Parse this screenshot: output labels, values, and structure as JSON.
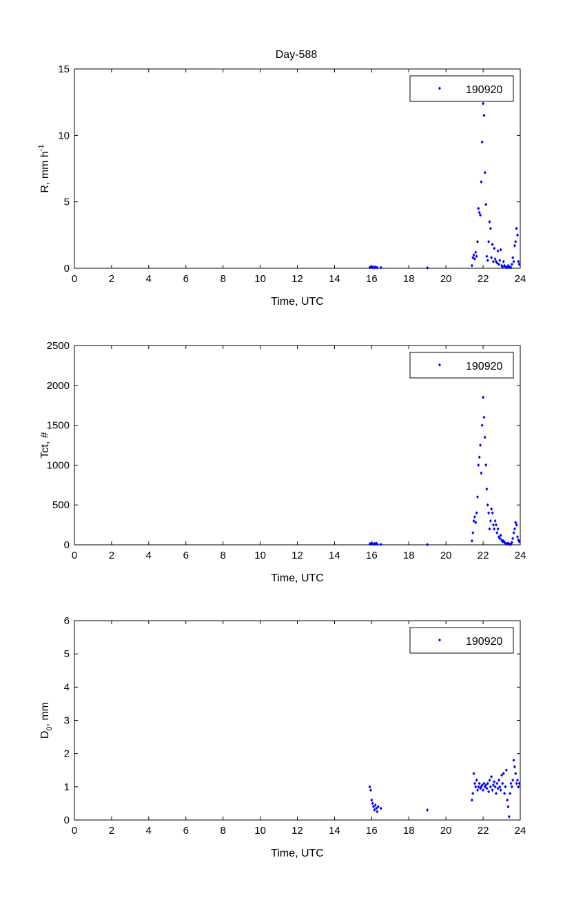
{
  "figure": {
    "title": "Day-588"
  },
  "style": {
    "marker_color": "#0000ff",
    "axis_color": "#000000",
    "background": "#ffffff"
  },
  "chart_data": [
    {
      "type": "scatter",
      "title": "Day-588",
      "xlabel": "Time, UTC",
      "ylabel": "R, mm h",
      "ylabel_superscript": "-1",
      "xlim": [
        0,
        24
      ],
      "ylim": [
        0,
        15
      ],
      "xticks": [
        0,
        2,
        4,
        6,
        8,
        10,
        12,
        14,
        16,
        18,
        20,
        22,
        24
      ],
      "yticks": [
        0,
        5,
        10,
        15
      ],
      "legend": {
        "position": "top-right",
        "entries": [
          "190920"
        ]
      },
      "grid": false,
      "series": [
        {
          "name": "190920",
          "x": [
            15.9,
            15.95,
            16.0,
            16.05,
            16.1,
            16.15,
            16.2,
            16.25,
            16.3,
            16.5,
            19.0,
            21.4,
            21.45,
            21.5,
            21.55,
            21.6,
            21.65,
            21.7,
            21.75,
            21.8,
            21.85,
            21.9,
            21.95,
            22.0,
            22.05,
            22.1,
            22.15,
            22.2,
            22.25,
            22.3,
            22.35,
            22.4,
            22.45,
            22.5,
            22.55,
            22.6,
            22.65,
            22.7,
            22.75,
            22.8,
            22.85,
            22.9,
            22.95,
            23.0,
            23.05,
            23.1,
            23.15,
            23.2,
            23.25,
            23.3,
            23.35,
            23.4,
            23.45,
            23.5,
            23.55,
            23.6,
            23.65,
            23.7,
            23.75,
            23.8,
            23.85,
            23.9,
            23.95
          ],
          "y": [
            0.05,
            0.1,
            0.08,
            0.05,
            0.1,
            0.05,
            0.08,
            0.05,
            0.05,
            0.05,
            0.03,
            0.2,
            0.8,
            1.0,
            0.7,
            1.2,
            0.9,
            2.0,
            4.5,
            4.2,
            4.0,
            6.5,
            9.5,
            12.4,
            11.5,
            7.2,
            4.8,
            0.9,
            0.6,
            2.0,
            3.5,
            3.0,
            0.8,
            1.8,
            0.5,
            1.5,
            0.7,
            0.5,
            0.4,
            1.3,
            0.3,
            0.6,
            1.4,
            0.2,
            0.1,
            0.5,
            0.2,
            0.1,
            0.05,
            0.1,
            0.2,
            0.05,
            0.1,
            0.05,
            0.3,
            0.8,
            0.5,
            1.7,
            2.0,
            3.0,
            2.5,
            0.5,
            0.3
          ]
        }
      ]
    },
    {
      "type": "scatter",
      "xlabel": "Time, UTC",
      "ylabel": "Tct, #",
      "xlim": [
        0,
        24
      ],
      "ylim": [
        0,
        2500
      ],
      "xticks": [
        0,
        2,
        4,
        6,
        8,
        10,
        12,
        14,
        16,
        18,
        20,
        22,
        24
      ],
      "yticks": [
        0,
        500,
        1000,
        1500,
        2000,
        2500
      ],
      "legend": {
        "position": "top-right",
        "entries": [
          "190920"
        ]
      },
      "grid": false,
      "series": [
        {
          "name": "190920",
          "x": [
            15.9,
            15.95,
            16.0,
            16.05,
            16.1,
            16.15,
            16.2,
            16.25,
            16.3,
            16.5,
            19.0,
            21.4,
            21.45,
            21.5,
            21.55,
            21.6,
            21.65,
            21.7,
            21.75,
            21.8,
            21.85,
            21.9,
            21.95,
            22.0,
            22.05,
            22.1,
            22.15,
            22.2,
            22.25,
            22.3,
            22.35,
            22.4,
            22.45,
            22.5,
            22.55,
            22.6,
            22.65,
            22.7,
            22.75,
            22.8,
            22.85,
            22.9,
            22.95,
            23.0,
            23.05,
            23.1,
            23.15,
            23.2,
            23.25,
            23.3,
            23.35,
            23.4,
            23.45,
            23.5,
            23.55,
            23.6,
            23.65,
            23.7,
            23.75,
            23.8,
            23.85,
            23.9,
            23.95
          ],
          "y": [
            10,
            15,
            20,
            12,
            8,
            15,
            10,
            20,
            8,
            5,
            3,
            50,
            150,
            300,
            350,
            280,
            400,
            600,
            1000,
            1100,
            1250,
            900,
            1500,
            1850,
            1600,
            1350,
            1000,
            700,
            500,
            400,
            200,
            300,
            450,
            400,
            250,
            200,
            300,
            250,
            150,
            200,
            100,
            80,
            120,
            60,
            40,
            50,
            30,
            20,
            10,
            15,
            20,
            10,
            5,
            10,
            30,
            80,
            150,
            200,
            280,
            250,
            100,
            60,
            40
          ]
        }
      ]
    },
    {
      "type": "scatter",
      "xlabel": "Time, UTC",
      "ylabel": "D",
      "ylabel_subscript": "0",
      "ylabel_suffix": ", mm",
      "xlim": [
        0,
        24
      ],
      "ylim": [
        0,
        6
      ],
      "xticks": [
        0,
        2,
        4,
        6,
        8,
        10,
        12,
        14,
        16,
        18,
        20,
        22,
        24
      ],
      "yticks": [
        0,
        1,
        2,
        3,
        4,
        5,
        6
      ],
      "legend": {
        "position": "top-right",
        "entries": [
          "190920"
        ]
      },
      "grid": false,
      "series": [
        {
          "name": "190920",
          "x": [
            15.9,
            15.95,
            16.0,
            16.05,
            16.1,
            16.15,
            16.2,
            16.25,
            16.3,
            16.35,
            16.5,
            19.0,
            21.4,
            21.45,
            21.5,
            21.55,
            21.6,
            21.65,
            21.7,
            21.75,
            21.8,
            21.85,
            21.9,
            21.95,
            22.0,
            22.05,
            22.1,
            22.15,
            22.2,
            22.25,
            22.3,
            22.35,
            22.4,
            22.45,
            22.5,
            22.55,
            22.6,
            22.65,
            22.7,
            22.75,
            22.8,
            22.85,
            22.9,
            22.95,
            23.0,
            23.05,
            23.1,
            23.15,
            23.2,
            23.25,
            23.3,
            23.35,
            23.4,
            23.45,
            23.5,
            23.55,
            23.6,
            23.65,
            23.7,
            23.75,
            23.8,
            23.85,
            23.9,
            23.95
          ],
          "y": [
            1.0,
            0.9,
            0.6,
            0.5,
            0.4,
            0.3,
            0.45,
            0.35,
            0.25,
            0.4,
            0.35,
            0.3,
            0.6,
            0.8,
            1.4,
            1.1,
            1.0,
            1.2,
            0.9,
            1.0,
            1.1,
            0.95,
            1.0,
            1.05,
            0.9,
            1.1,
            1.0,
            1.05,
            0.95,
            1.1,
            0.85,
            1.2,
            1.0,
            1.3,
            0.9,
            1.05,
            1.15,
            1.0,
            0.8,
            1.1,
            0.95,
            1.2,
            1.0,
            0.9,
            1.35,
            1.1,
            1.4,
            0.8,
            1.0,
            1.5,
            0.6,
            0.4,
            0.1,
            0.8,
            1.1,
            1.0,
            1.2,
            1.8,
            1.6,
            1.4,
            1.1,
            1.2,
            1.0,
            1.1
          ]
        }
      ]
    }
  ]
}
